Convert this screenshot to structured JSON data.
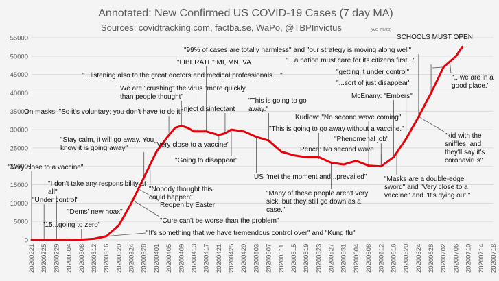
{
  "chart_data": {
    "type": "line",
    "title": "Annotated: New Confirmed US COVID-19 Cases (7 day MA)",
    "subtitle": "Sources: covidtracking.com, factba.se, WaPo, @TBPInvictus",
    "subtitle_note": "(A/O 7/8/20)",
    "series_color": "#e8000b",
    "grid": true,
    "ylim": [
      0,
      55000
    ],
    "y_ticks": [
      "0",
      "5000",
      "10000",
      "15000",
      "20000",
      "25000",
      "30000",
      "35000",
      "40000",
      "45000",
      "50000",
      "55000"
    ],
    "x_ticks": [
      "20200221",
      "20200225",
      "20200229",
      "20200304",
      "20200308",
      "20200312",
      "20200316",
      "20200320",
      "20200324",
      "20200328",
      "20200401",
      "20200405",
      "20200409",
      "20200413",
      "20200417",
      "20200421",
      "20200425",
      "20200429",
      "20200503",
      "20200507",
      "20200511",
      "20200515",
      "20200519",
      "20200523",
      "20200527",
      "20200531",
      "20200604",
      "20200608",
      "20200612",
      "20200616",
      "20200620",
      "20200624",
      "20200628",
      "20200702",
      "20200706",
      "20200710",
      "20200714",
      "20200718"
    ],
    "x": [
      "20200221",
      "20200225",
      "20200229",
      "20200304",
      "20200308",
      "20200312",
      "20200316",
      "20200320",
      "20200324",
      "20200328",
      "20200401",
      "20200405",
      "20200407",
      "20200409",
      "20200411",
      "20200413",
      "20200417",
      "20200421",
      "20200423",
      "20200425",
      "20200429",
      "20200503",
      "20200507",
      "20200511",
      "20200515",
      "20200519",
      "20200523",
      "20200527",
      "20200531",
      "20200604",
      "20200608",
      "20200612",
      "20200616",
      "20200620",
      "20200624",
      "20200628",
      "20200702",
      "20200704",
      "20200706",
      "20200708"
    ],
    "values": [
      0,
      0,
      0,
      20,
      100,
      300,
      1000,
      4000,
      10000,
      17000,
      24000,
      28500,
      30500,
      31000,
      30500,
      29500,
      29500,
      28500,
      29000,
      30000,
      29500,
      28000,
      27000,
      24000,
      23000,
      22500,
      22500,
      21000,
      20500,
      21500,
      20200,
      20000,
      22500,
      27500,
      33500,
      40000,
      47000,
      48500,
      50000,
      52500
    ],
    "annotations": [
      "\"Very close to a vaccine\"",
      "\"I don't take any responsibility at all\"",
      "\"Under control\"",
      "\"Dems' new hoax\"",
      "\"15...going to zero\"",
      "\"Stay calm, it will go away. You know it is going away\"",
      "On masks: \"So it's voluntary; you don't have to do it\"",
      "We are \"crushing\" the virus \"more quickly than people thought\"",
      "\"...listening also to the great doctors and medical professionals....\"",
      "\"LIBERATE\" MI, MN, VA",
      "Inject disinfectant",
      "\"Very close to a vaccine\"",
      "\"Going to disappear\"",
      "\"Nobody thought this could happen\"",
      "Reopen by Easter",
      "\"Cure can't be worse than the problem\"",
      "\"It's something that we have tremendous control over\" and \"Kung flu\"",
      "US \"met the moment and...prevailed\"",
      "\"Many of these people aren't very sick, but they still go down as a case.\"",
      "\"This is going to go away.\"",
      "\"This is going to go away without a vaccine.\"",
      "\"99% of cases are totally harmless\" and \"our strategy is moving along well\"",
      "\"...a nation must care for its citizens first...\"",
      "\"getting it under control\"",
      "\"...sort of just disappear\"",
      "McEnany: \"Embers\"",
      "Kudlow: \"No second wave coming\"",
      "\"Phenomenal job\"",
      "Pence: No second wave",
      "SCHOOLS MUST OPEN",
      "\"...we are in a good place.\"",
      "\"kid with the sniffles, and they'll say it's coronavirus\"",
      "\"Masks are a double-edge sword\" and \"Very close to a vaccine\" and \"It's dying out.\""
    ]
  }
}
